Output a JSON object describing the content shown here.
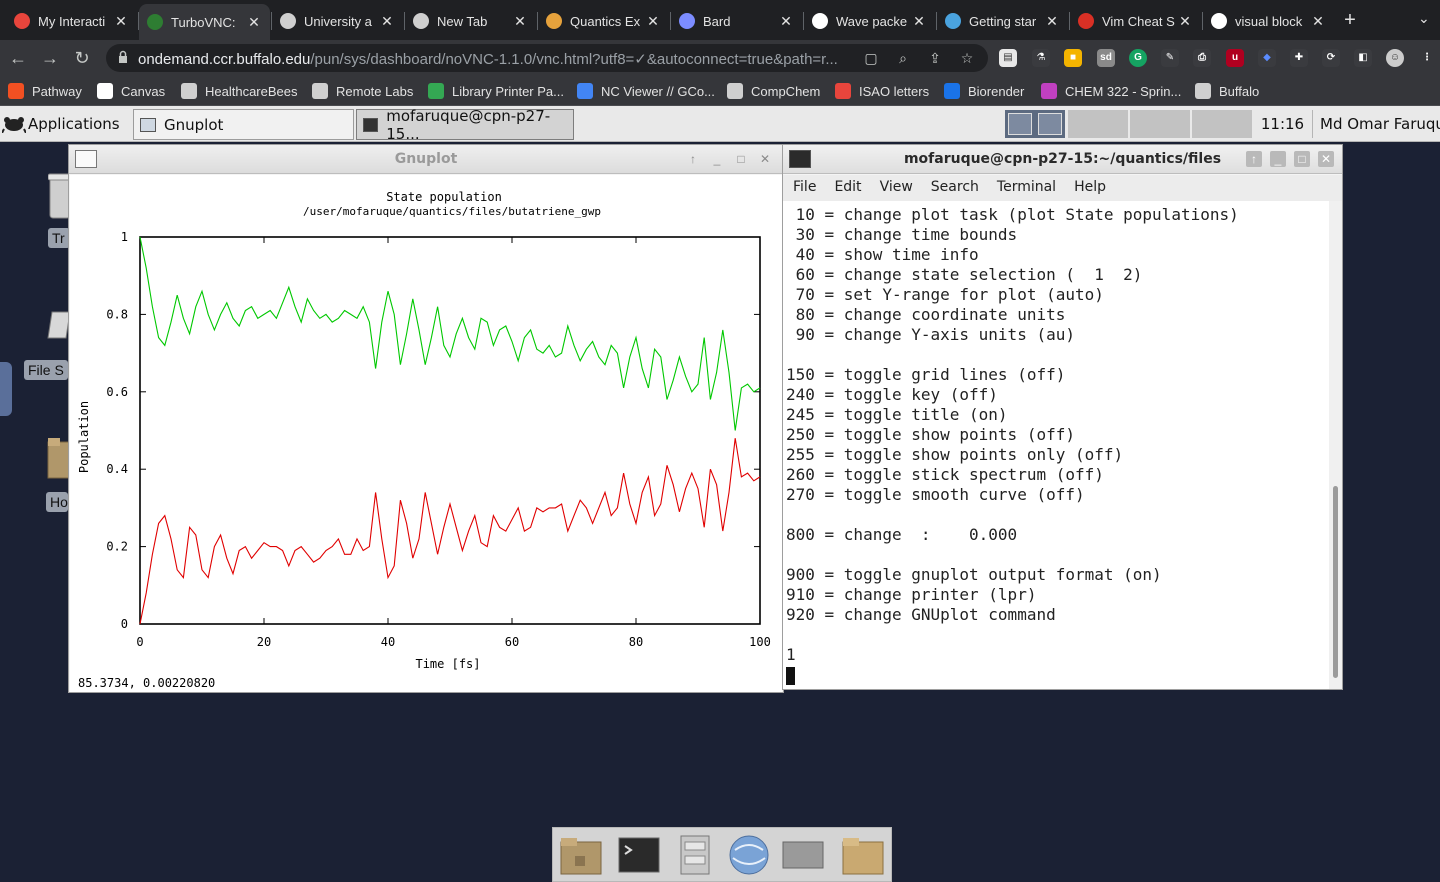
{
  "browser": {
    "tabs": [
      {
        "label": "My Interacti",
        "icon": "record-icon",
        "color": "#e8453c",
        "active": false
      },
      {
        "label": "TurboVNC:",
        "icon": "vnc-icon",
        "color": "#2e7d32",
        "active": true
      },
      {
        "label": "University a",
        "icon": "globe-icon",
        "color": "#cfcfcf",
        "active": false
      },
      {
        "label": "New Tab",
        "icon": "chrome-icon",
        "color": "#cfcfcf",
        "active": false
      },
      {
        "label": "Quantics Ex",
        "icon": "quantics-icon",
        "color": "#e6a23c",
        "active": false
      },
      {
        "label": "Bard",
        "icon": "sparkle-icon",
        "color": "#7c8cff",
        "active": false
      },
      {
        "label": "Wave packe",
        "icon": "wikipedia-icon",
        "color": "#ffffff",
        "active": false
      },
      {
        "label": "Getting star",
        "icon": "gear-icon",
        "color": "#4aa3df",
        "active": false
      },
      {
        "label": "Vim Cheat S",
        "icon": "vim-icon",
        "color": "#d93025",
        "active": false
      },
      {
        "label": "visual block",
        "icon": "google-icon",
        "color": "#ffffff",
        "active": false
      }
    ],
    "url_host": "ondemand.ccr.buffalo.edu",
    "url_path": "/pun/sys/dashboard/noVNC-1.1.0/vnc.html?utf8=✓&autoconnect=true&path=r...",
    "bookmarks": [
      {
        "label": "Pathway",
        "icon": "windows-icon",
        "color": "#f25022"
      },
      {
        "label": "Canvas",
        "icon": "canvas-icon",
        "color": "#ffffff"
      },
      {
        "label": "HealthcareBees",
        "icon": "globe-icon",
        "color": "#cfcfcf"
      },
      {
        "label": "Remote Labs",
        "icon": "globe-icon",
        "color": "#cfcfcf"
      },
      {
        "label": "Library Printer Pa...",
        "icon": "printer-icon",
        "color": "#34a853"
      },
      {
        "label": "NC Viewer // GCo...",
        "icon": "ncviewer-icon",
        "color": "#4285f4"
      },
      {
        "label": "CompChem",
        "icon": "folder-icon",
        "color": "#cfcfcf"
      },
      {
        "label": "ISAO letters",
        "icon": "isao-icon",
        "color": "#e8453c"
      },
      {
        "label": "Biorender",
        "icon": "biorender-icon",
        "color": "#1a73e8"
      },
      {
        "label": "CHEM 322 - Sprin...",
        "icon": "chem-icon",
        "color": "#c040c0"
      },
      {
        "label": "Buffalo",
        "icon": "folder-icon",
        "color": "#cfcfcf"
      }
    ]
  },
  "desktop": {
    "applications_label": "Applications",
    "tasks": [
      "Gnuplot",
      "mofaruque@cpn-p27-15..."
    ],
    "clock": "11:16",
    "user": "Md Omar Faruque",
    "icons": [
      {
        "label": "Tr",
        "icon": "trash-icon"
      },
      {
        "label": "File S",
        "icon": "drive-icon"
      },
      {
        "label": "Ho",
        "icon": "home-folder-icon"
      }
    ]
  },
  "gnuplot": {
    "window_title": "Gnuplot",
    "status": "85.3734,   0.00220820"
  },
  "chart_data": {
    "type": "line",
    "title": "State population",
    "subtitle": "/user/mofaruque/quantics/files/butatriene_gwp",
    "xlabel": "Time [fs]",
    "ylabel": "Population",
    "xlim": [
      0,
      100
    ],
    "ylim": [
      0,
      1
    ],
    "xticks": [
      "0",
      "20",
      "40",
      "60",
      "80",
      "100"
    ],
    "yticks": [
      "0",
      "0.2",
      "0.4",
      "0.6",
      "0.8",
      "1"
    ],
    "grid": false,
    "legend": "none",
    "x": [
      0,
      1,
      2,
      3,
      4,
      5,
      6,
      7,
      8,
      9,
      10,
      11,
      12,
      13,
      14,
      15,
      16,
      17,
      18,
      19,
      20,
      21,
      22,
      23,
      24,
      25,
      26,
      27,
      28,
      29,
      30,
      31,
      32,
      33,
      34,
      35,
      36,
      37,
      38,
      39,
      40,
      41,
      42,
      43,
      44,
      45,
      46,
      47,
      48,
      49,
      50,
      51,
      52,
      53,
      54,
      55,
      56,
      57,
      58,
      59,
      60,
      61,
      62,
      63,
      64,
      65,
      66,
      67,
      68,
      69,
      70,
      71,
      72,
      73,
      74,
      75,
      76,
      77,
      78,
      79,
      80,
      81,
      82,
      83,
      84,
      85,
      86,
      87,
      88,
      89,
      90,
      91,
      92,
      93,
      94,
      95,
      96,
      97,
      98,
      99,
      100
    ],
    "series": [
      {
        "color": "#00c800",
        "values": [
          1.0,
          0.92,
          0.82,
          0.74,
          0.72,
          0.78,
          0.85,
          0.79,
          0.75,
          0.82,
          0.86,
          0.8,
          0.76,
          0.8,
          0.83,
          0.79,
          0.77,
          0.81,
          0.82,
          0.79,
          0.8,
          0.81,
          0.79,
          0.83,
          0.87,
          0.82,
          0.78,
          0.84,
          0.81,
          0.79,
          0.8,
          0.78,
          0.79,
          0.81,
          0.8,
          0.79,
          0.82,
          0.78,
          0.66,
          0.78,
          0.86,
          0.8,
          0.67,
          0.75,
          0.84,
          0.76,
          0.67,
          0.74,
          0.82,
          0.72,
          0.69,
          0.75,
          0.79,
          0.74,
          0.71,
          0.79,
          0.78,
          0.72,
          0.76,
          0.77,
          0.73,
          0.68,
          0.74,
          0.76,
          0.71,
          0.7,
          0.72,
          0.69,
          0.7,
          0.77,
          0.72,
          0.68,
          0.71,
          0.73,
          0.69,
          0.67,
          0.72,
          0.7,
          0.61,
          0.69,
          0.74,
          0.66,
          0.61,
          0.71,
          0.69,
          0.58,
          0.63,
          0.69,
          0.64,
          0.6,
          0.62,
          0.74,
          0.58,
          0.65,
          0.76,
          0.65,
          0.5,
          0.61,
          0.62,
          0.6,
          0.61
        ]
      },
      {
        "color": "#e00000",
        "values": [
          0.0,
          0.08,
          0.18,
          0.26,
          0.28,
          0.22,
          0.14,
          0.12,
          0.25,
          0.23,
          0.14,
          0.12,
          0.2,
          0.23,
          0.17,
          0.13,
          0.19,
          0.2,
          0.17,
          0.19,
          0.21,
          0.2,
          0.2,
          0.19,
          0.15,
          0.19,
          0.2,
          0.18,
          0.16,
          0.17,
          0.19,
          0.2,
          0.22,
          0.18,
          0.18,
          0.22,
          0.19,
          0.2,
          0.34,
          0.22,
          0.12,
          0.15,
          0.32,
          0.26,
          0.17,
          0.22,
          0.34,
          0.26,
          0.18,
          0.25,
          0.31,
          0.25,
          0.19,
          0.24,
          0.28,
          0.21,
          0.2,
          0.28,
          0.25,
          0.24,
          0.27,
          0.3,
          0.24,
          0.25,
          0.3,
          0.29,
          0.3,
          0.3,
          0.31,
          0.24,
          0.28,
          0.32,
          0.3,
          0.26,
          0.3,
          0.34,
          0.28,
          0.3,
          0.39,
          0.31,
          0.26,
          0.34,
          0.38,
          0.28,
          0.31,
          0.41,
          0.36,
          0.29,
          0.35,
          0.39,
          0.35,
          0.25,
          0.4,
          0.36,
          0.24,
          0.34,
          0.48,
          0.38,
          0.39,
          0.37,
          0.38
        ]
      }
    ]
  },
  "terminal": {
    "window_title": "mofaruque@cpn-p27-15:~/quantics/files",
    "menu": [
      "File",
      "Edit",
      "View",
      "Search",
      "Terminal",
      "Help"
    ],
    "lines": [
      " 10 = change plot task (plot State populations)",
      " 30 = change time bounds",
      " 40 = show time info",
      " 60 = change state selection (  1  2)",
      " 70 = set Y-range for plot (auto)",
      " 80 = change coordinate units",
      " 90 = change Y-axis units (au)",
      "",
      "150 = toggle grid lines (off)",
      "240 = toggle key (off)",
      "245 = toggle title (on)",
      "250 = toggle show points (off)",
      "255 = toggle show points only (off)",
      "260 = toggle stick spectrum (off)",
      "270 = toggle smooth curve (off)",
      "",
      "800 = change  :    0.000",
      "",
      "900 = toggle gnuplot output format (on)",
      "910 = change printer (lpr)",
      "920 = change GNUplot command",
      "",
      "1"
    ]
  }
}
